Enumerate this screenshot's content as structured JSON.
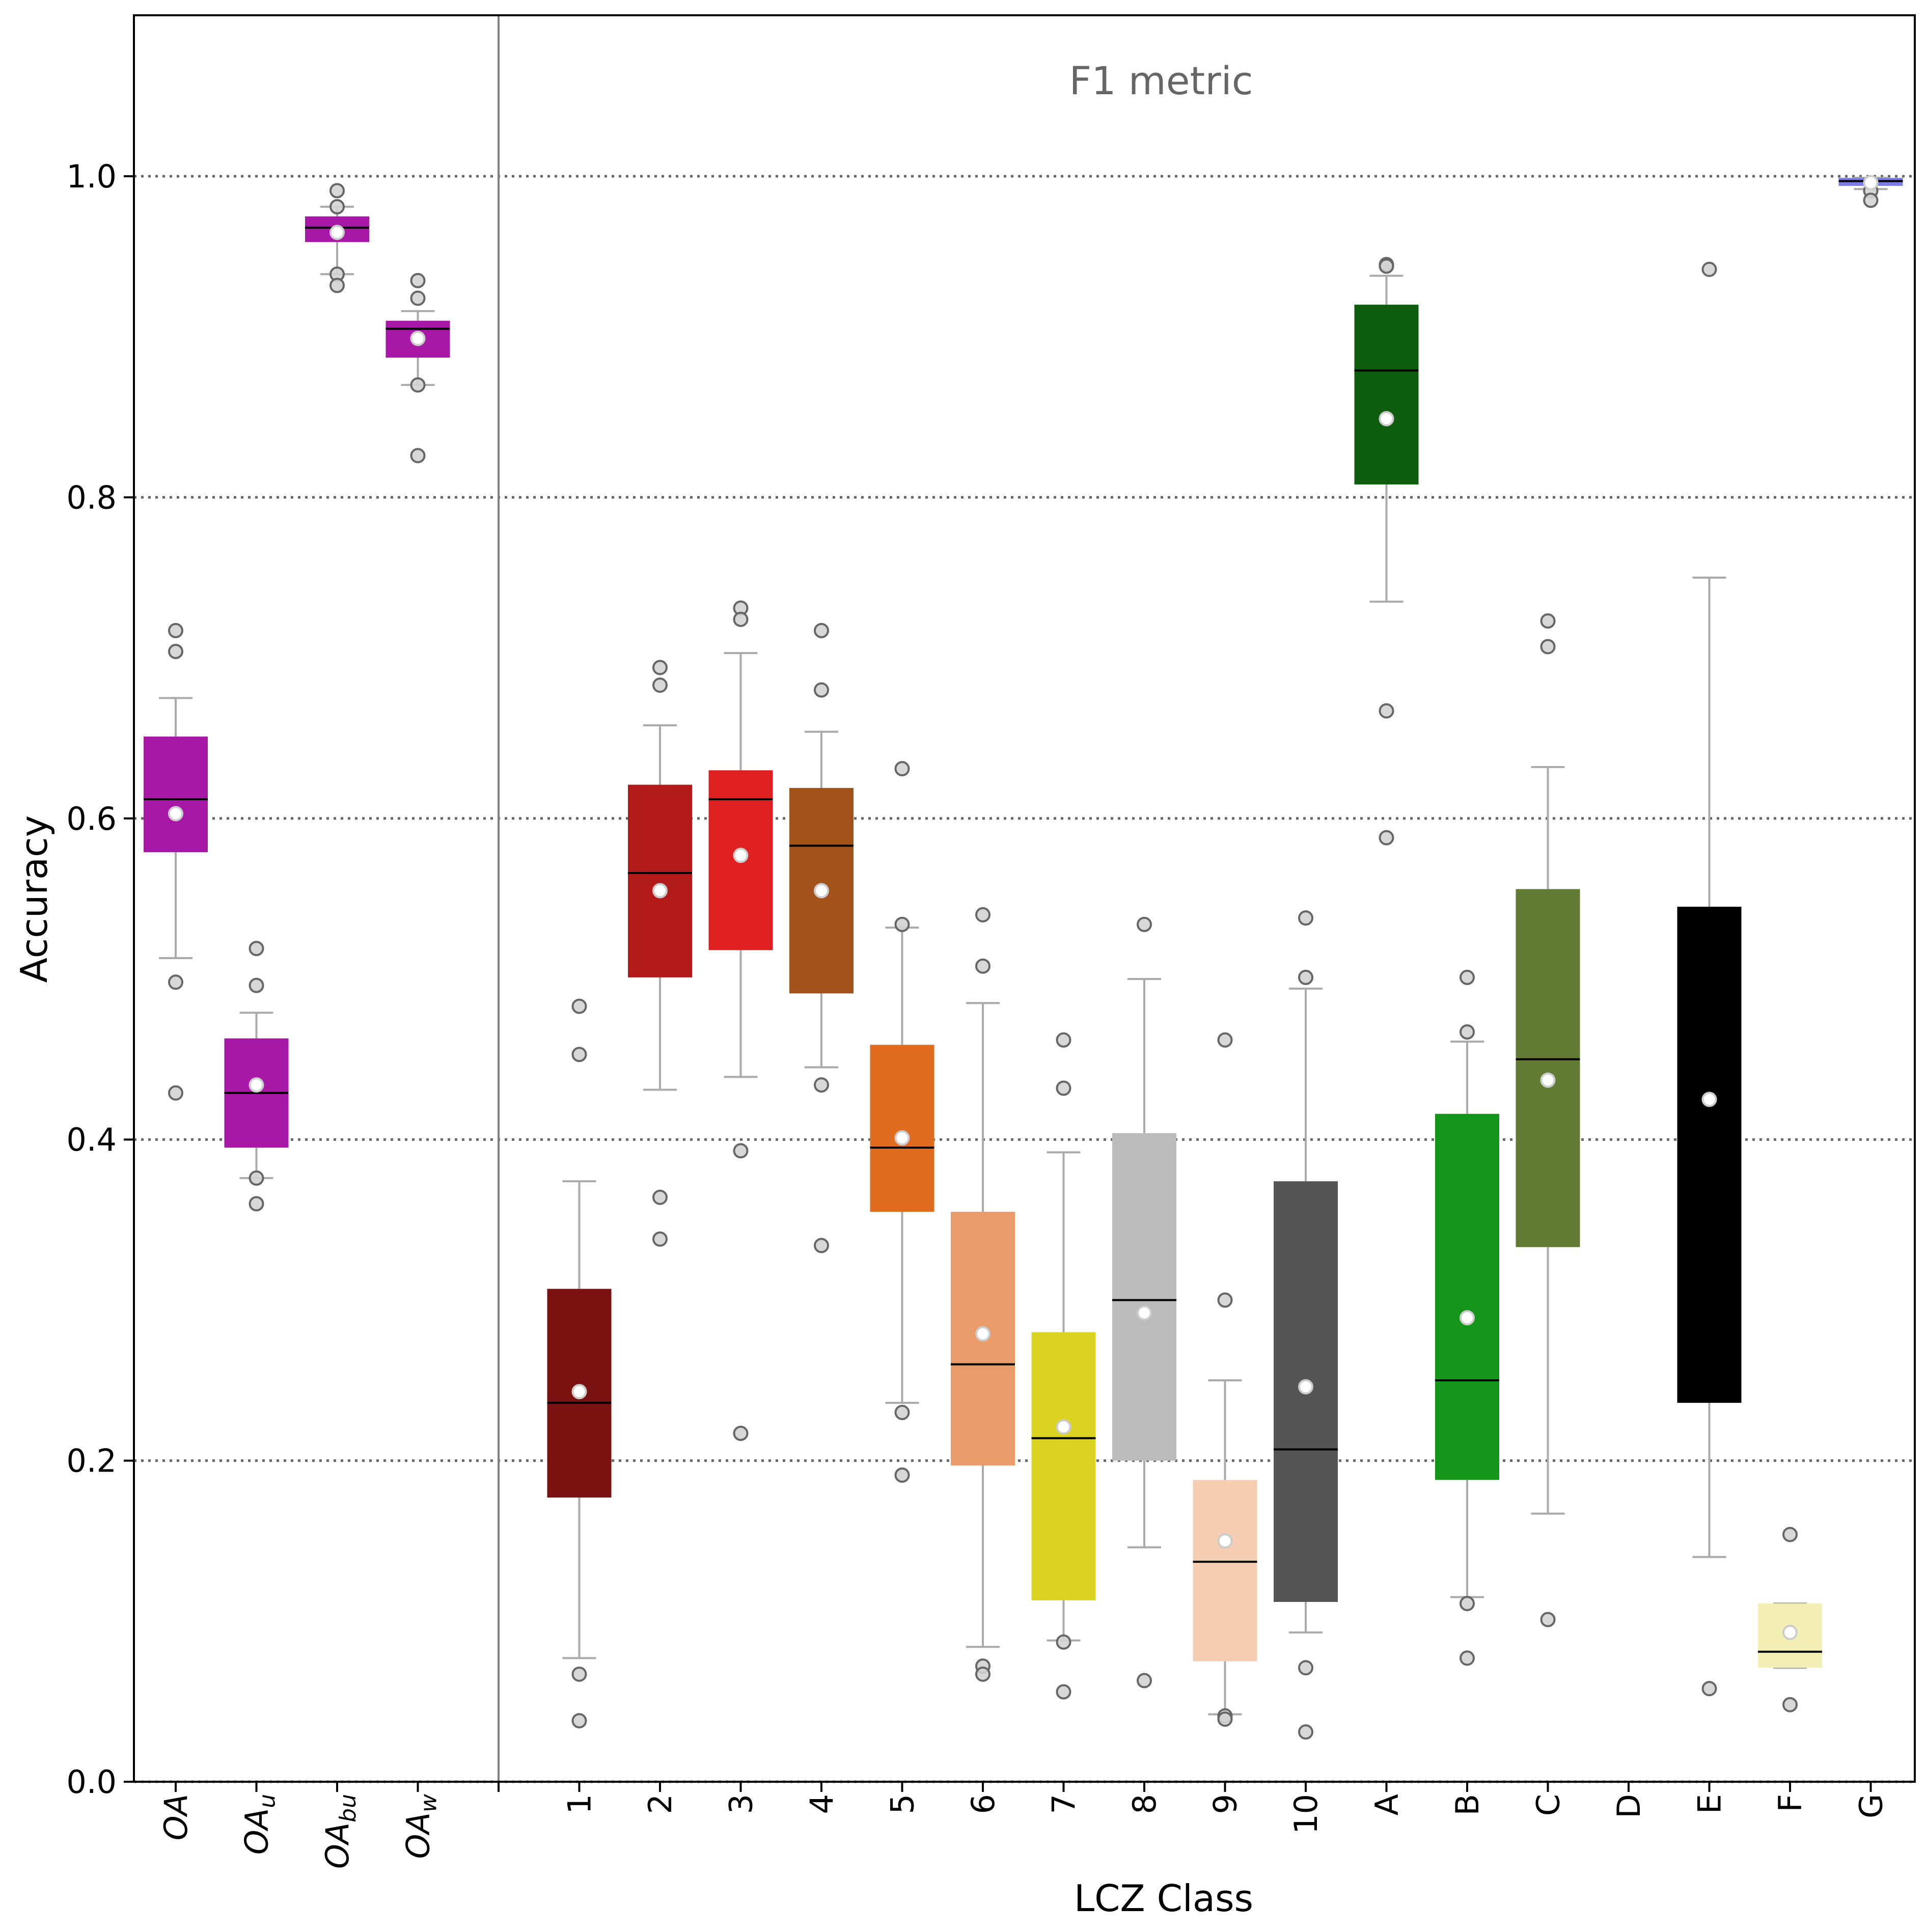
{
  "chart_data": {
    "type": "box",
    "title": "F1 metric",
    "xlabel": "LCZ Class",
    "ylabel": "Accuracy",
    "ylim": [
      0.0,
      1.1
    ],
    "yticks": [
      "0.0",
      "0.2",
      "0.4",
      "0.6",
      "0.8",
      "1.0"
    ],
    "ytick_values": [
      0.0,
      0.2,
      0.4,
      0.6,
      0.8,
      1.0
    ],
    "grid": "horizontal dotted at y ticks",
    "groups": [
      {
        "name": "overall",
        "categories": [
          {
            "label": "OA",
            "base": "OA",
            "sub": "",
            "color": "#a718a7",
            "whislo": 0.513,
            "q1": 0.579,
            "med": 0.612,
            "q3": 0.651,
            "whishi": 0.675,
            "mean": 0.603,
            "fliers": [
              0.717,
              0.704,
              0.498,
              0.429
            ]
          },
          {
            "label": "OA_u",
            "base": "OA",
            "sub": "u",
            "color": "#a718a7",
            "whislo": 0.376,
            "q1": 0.395,
            "med": 0.429,
            "q3": 0.463,
            "whishi": 0.479,
            "mean": 0.434,
            "fliers": [
              0.519,
              0.496,
              0.376,
              0.36
            ]
          },
          {
            "label": "OA_bu",
            "base": "OA",
            "sub": "bu",
            "color": "#a718a7",
            "whislo": 0.939,
            "q1": 0.959,
            "med": 0.968,
            "q3": 0.975,
            "whishi": 0.981,
            "mean": 0.965,
            "fliers": [
              0.991,
              0.981,
              0.939,
              0.932
            ]
          },
          {
            "label": "OA_w",
            "base": "OA",
            "sub": "w",
            "color": "#a718a7",
            "whislo": 0.87,
            "q1": 0.887,
            "med": 0.905,
            "q3": 0.91,
            "whishi": 0.916,
            "mean": 0.899,
            "fliers": [
              0.935,
              0.924,
              0.87,
              0.826
            ]
          }
        ]
      },
      {
        "name": "lcz",
        "categories": [
          {
            "label": "1",
            "color": "#7a1212",
            "whislo": 0.077,
            "q1": 0.177,
            "med": 0.236,
            "q3": 0.307,
            "whishi": 0.374,
            "mean": 0.243,
            "fliers": [
              0.483,
              0.453,
              0.067,
              0.038
            ]
          },
          {
            "label": "2",
            "color": "#b31a1a",
            "whislo": 0.431,
            "q1": 0.501,
            "med": 0.566,
            "q3": 0.621,
            "whishi": 0.658,
            "mean": 0.555,
            "fliers": [
              0.694,
              0.683,
              0.364,
              0.338
            ]
          },
          {
            "label": "3",
            "color": "#df2020",
            "whislo": 0.439,
            "q1": 0.518,
            "med": 0.612,
            "q3": 0.63,
            "whishi": 0.703,
            "mean": 0.577,
            "fliers": [
              0.731,
              0.724,
              0.393,
              0.217
            ]
          },
          {
            "label": "4",
            "color": "#a3521a",
            "whislo": 0.445,
            "q1": 0.491,
            "med": 0.583,
            "q3": 0.619,
            "whishi": 0.654,
            "mean": 0.555,
            "fliers": [
              0.717,
              0.68,
              0.434,
              0.334
            ]
          },
          {
            "label": "5",
            "color": "#e06c20",
            "whislo": 0.236,
            "q1": 0.355,
            "med": 0.395,
            "q3": 0.459,
            "whishi": 0.532,
            "mean": 0.401,
            "fliers": [
              0.631,
              0.534,
              0.23,
              0.191
            ]
          },
          {
            "label": "6",
            "color": "#e99b6a",
            "whislo": 0.084,
            "q1": 0.197,
            "med": 0.26,
            "q3": 0.355,
            "whishi": 0.485,
            "mean": 0.279,
            "fliers": [
              0.54,
              0.508,
              0.072,
              0.067
            ]
          },
          {
            "label": "7",
            "color": "#dbd322",
            "whislo": 0.088,
            "q1": 0.113,
            "med": 0.214,
            "q3": 0.28,
            "whishi": 0.392,
            "mean": 0.221,
            "fliers": [
              0.462,
              0.432,
              0.087,
              0.056
            ]
          },
          {
            "label": "8",
            "color": "#bbbbbb",
            "whislo": 0.146,
            "q1": 0.2,
            "med": 0.3,
            "q3": 0.404,
            "whishi": 0.5,
            "mean": 0.292,
            "fliers": [
              0.534,
              0.063
            ]
          },
          {
            "label": "9",
            "color": "#f4cdb2",
            "whislo": 0.042,
            "q1": 0.075,
            "med": 0.137,
            "q3": 0.188,
            "whishi": 0.25,
            "mean": 0.15,
            "fliers": [
              0.462,
              0.3,
              0.041,
              0.039
            ]
          },
          {
            "label": "10",
            "color": "#555555",
            "whislo": 0.093,
            "q1": 0.112,
            "med": 0.207,
            "q3": 0.374,
            "whishi": 0.494,
            "mean": 0.246,
            "fliers": [
              0.538,
              0.501,
              0.071,
              0.031
            ]
          },
          {
            "label": "A",
            "color": "#0e5c0e",
            "whislo": 0.735,
            "q1": 0.808,
            "med": 0.879,
            "q3": 0.92,
            "whishi": 0.938,
            "mean": 0.849,
            "fliers": [
              0.945,
              0.944,
              0.667,
              0.588
            ]
          },
          {
            "label": "B",
            "color": "#14961a",
            "whislo": 0.115,
            "q1": 0.188,
            "med": 0.25,
            "q3": 0.416,
            "whishi": 0.461,
            "mean": 0.289,
            "fliers": [
              0.501,
              0.467,
              0.111,
              0.077
            ]
          },
          {
            "label": "C",
            "color": "#617b32",
            "whislo": 0.167,
            "q1": 0.333,
            "med": 0.45,
            "q3": 0.556,
            "whishi": 0.632,
            "mean": 0.437,
            "fliers": [
              0.723,
              0.707,
              0.101
            ]
          },
          {
            "label": "D",
            "color": "#000000",
            "empty": true
          },
          {
            "label": "E",
            "color": "#000000",
            "whislo": 0.14,
            "q1": 0.236,
            "med": null,
            "q3": 0.545,
            "whishi": 0.75,
            "mean": 0.425,
            "fliers": [
              0.942,
              0.058
            ]
          },
          {
            "label": "F",
            "color": "#f2eeb4",
            "whislo": 0.071,
            "q1": 0.071,
            "med": 0.081,
            "q3": 0.111,
            "whishi": 0.111,
            "mean": 0.093,
            "fliers": [
              0.154,
              0.048
            ]
          },
          {
            "label": "G",
            "color": "#7b7be8",
            "whislo": 0.992,
            "q1": 0.994,
            "med": 0.997,
            "q3": 0.999,
            "whishi": 0.999,
            "mean": 0.996,
            "fliers": [
              0.991,
              0.985
            ]
          }
        ]
      }
    ]
  }
}
